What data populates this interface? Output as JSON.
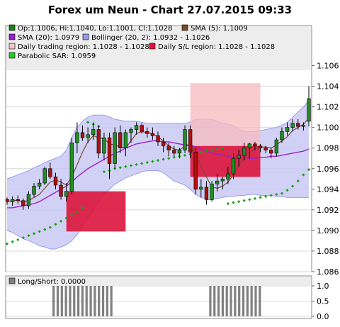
{
  "chart_data": [
    {
      "type": "candlestick",
      "title": "Forex um Neun - Chart 27.07.2015 09:33",
      "ylim": [
        1.086,
        1.106
      ],
      "yticks": [
        "1.086",
        "1.088",
        "1.090",
        "1.092",
        "1.094",
        "1.096",
        "1.098",
        "1.100",
        "1.102",
        "1.104",
        "1.106"
      ],
      "grid": true,
      "legend": [
        {
          "label": "Op:1.1006, Hi:1.1040, Lo:1.1001, Cl:1.1028",
          "color": "#1a7f1a"
        },
        {
          "label": "SMA (5): 1.1009",
          "color": "#7a4a2a"
        },
        {
          "label": "SMA (20): 1.0979",
          "color": "#9a20c8"
        },
        {
          "label": "Bollinger (20, 2): 1.0932 - 1.1026",
          "color": "#9a9af0"
        },
        {
          "label": "Daily trading region: 1.1028 - 1.1028",
          "color": "#f4c4c8"
        },
        {
          "label": "Daily S/L region: 1.1028 - 1.1028",
          "color": "#dc143c"
        },
        {
          "label": "Parabolic SAR: 1.0959",
          "color": "#22cc22"
        }
      ],
      "candles": [
        [
          1.093,
          1.0932,
          1.0925,
          1.0928
        ],
        [
          1.0928,
          1.0933,
          1.0924,
          1.093
        ],
        [
          1.093,
          1.0934,
          1.0926,
          1.0929
        ],
        [
          1.0929,
          1.0931,
          1.092,
          1.0924
        ],
        [
          1.0924,
          1.0938,
          1.0921,
          1.0935
        ],
        [
          1.0935,
          1.0946,
          1.0932,
          1.0943
        ],
        [
          1.0943,
          1.095,
          1.094,
          1.0946
        ],
        [
          1.0946,
          1.0962,
          1.0944,
          1.096
        ],
        [
          1.096,
          1.0966,
          1.095,
          1.0952
        ],
        [
          1.0952,
          1.0956,
          1.094,
          1.0944
        ],
        [
          1.0944,
          1.095,
          1.093,
          1.0933
        ],
        [
          1.0933,
          1.0946,
          1.0928,
          1.0938
        ],
        [
          1.0938,
          1.099,
          1.0935,
          1.0985
        ],
        [
          1.0985,
          1.1005,
          1.0975,
          1.0995
        ],
        [
          1.0995,
          1.1002,
          1.0987,
          1.099
        ],
        [
          1.099,
          1.1,
          1.0985,
          1.0993
        ],
        [
          1.0993,
          1.1005,
          1.0988,
          1.0998
        ],
        [
          1.0998,
          1.1002,
          1.097,
          1.0975
        ],
        [
          1.0975,
          1.0995,
          1.0968,
          1.099
        ],
        [
          1.099,
          1.0995,
          1.095,
          1.0965
        ],
        [
          1.0965,
          1.1,
          1.096,
          1.0995
        ],
        [
          1.0995,
          1.1002,
          1.0975,
          1.098
        ],
        [
          1.098,
          1.0998,
          1.0972,
          1.0995
        ],
        [
          1.0995,
          1.1,
          1.0985,
          1.0998
        ],
        [
          1.0998,
          1.1005,
          1.0993,
          1.1002
        ],
        [
          1.1002,
          1.1004,
          1.0994,
          1.0996
        ],
        [
          1.0996,
          1.1,
          1.099,
          1.0994
        ],
        [
          1.0994,
          1.1,
          1.0988,
          1.0992
        ],
        [
          1.0992,
          1.0996,
          1.0982,
          1.0986
        ],
        [
          1.0986,
          1.099,
          1.0976,
          1.0982
        ],
        [
          1.0982,
          1.0985,
          1.0972,
          1.0978
        ],
        [
          1.0978,
          1.0982,
          1.0972,
          1.0975
        ],
        [
          1.0975,
          1.098,
          1.097,
          1.0978
        ],
        [
          1.0978,
          1.1002,
          1.0975,
          1.0998
        ],
        [
          1.0998,
          1.1002,
          1.097,
          1.0976
        ],
        [
          1.0976,
          1.098,
          1.0935,
          1.094
        ],
        [
          1.094,
          1.095,
          1.0932,
          1.0942
        ],
        [
          1.0942,
          1.0948,
          1.0925,
          1.093
        ],
        [
          1.093,
          1.0948,
          1.0928,
          1.0945
        ],
        [
          1.0945,
          1.0955,
          1.0938,
          1.0948
        ],
        [
          1.0948,
          1.0952,
          1.094,
          1.095
        ],
        [
          1.095,
          1.0962,
          1.0945,
          1.0955
        ],
        [
          1.0955,
          1.0975,
          1.095,
          1.097
        ],
        [
          1.097,
          1.0978,
          1.0962,
          1.0973
        ],
        [
          1.0973,
          1.0985,
          1.0968,
          1.098
        ],
        [
          1.098,
          1.0985,
          1.097,
          1.0984
        ],
        [
          1.0984,
          1.0986,
          1.0978,
          1.0982
        ],
        [
          1.0982,
          1.0984,
          1.0976,
          1.098
        ],
        [
          1.098,
          1.0982,
          1.0975,
          1.0978
        ],
        [
          1.0978,
          1.098,
          1.097,
          1.0975
        ],
        [
          1.0975,
          1.099,
          1.0972,
          1.0988
        ],
        [
          1.0988,
          1.1,
          1.0985,
          1.0996
        ],
        [
          1.0996,
          1.1005,
          1.0992,
          1.1
        ],
        [
          1.1,
          1.1008,
          1.0996,
          1.1004
        ],
        [
          1.1004,
          1.1008,
          1.0998,
          1.1001
        ],
        [
          1.1001,
          1.1005,
          1.0997,
          1.1002
        ],
        [
          1.1006,
          1.104,
          1.1001,
          1.1028
        ]
      ],
      "sma5": [
        1.0928,
        1.0929,
        1.0929,
        1.0928,
        1.0929,
        1.0932,
        1.0935,
        1.0941,
        1.0947,
        1.0949,
        1.0947,
        1.0944,
        1.0952,
        1.0964,
        1.0976,
        1.0986,
        1.0992,
        1.099,
        1.0989,
        1.0984,
        1.0983,
        1.0981,
        1.098,
        1.0987,
        1.0994,
        1.0996,
        1.0995,
        1.0994,
        1.0991,
        1.0987,
        1.0982,
        1.0979,
        1.0978,
        1.0982,
        1.0983,
        1.0973,
        1.0962,
        1.0952,
        1.0942,
        1.0941,
        1.0943,
        1.0947,
        1.0954,
        1.0963,
        1.097,
        1.0976,
        1.0979,
        1.0981,
        1.0981,
        1.098,
        1.0983,
        1.0987,
        1.0991,
        1.0997,
        1.1,
        1.1003,
        1.1009
      ],
      "sma20": [
        1.0922,
        1.0922,
        1.0923,
        1.0924,
        1.0925,
        1.0926,
        1.0928,
        1.0931,
        1.0934,
        1.0937,
        1.094,
        1.0943,
        1.0947,
        1.0952,
        1.0956,
        1.096,
        1.0963,
        1.0966,
        1.0969,
        1.0972,
        1.0975,
        1.0977,
        1.098,
        1.0982,
        1.0984,
        1.0985,
        1.0986,
        1.0987,
        1.0987,
        1.0986,
        1.0986,
        1.0985,
        1.0984,
        1.0983,
        1.0983,
        1.0981,
        1.0979,
        1.0977,
        1.0975,
        1.0974,
        1.0973,
        1.0972,
        1.0971,
        1.0971,
        1.0971,
        1.097,
        1.097,
        1.0971,
        1.0971,
        1.0972,
        1.0972,
        1.0973,
        1.0974,
        1.0975,
        1.0976,
        1.0977,
        1.0979
      ],
      "bb_upper": [
        1.095,
        1.0952,
        1.0954,
        1.0956,
        1.0958,
        1.0961,
        1.0963,
        1.0966,
        1.0968,
        1.097,
        1.0972,
        1.0978,
        1.099,
        1.1,
        1.1006,
        1.101,
        1.1012,
        1.1012,
        1.1012,
        1.101,
        1.1008,
        1.1007,
        1.1006,
        1.1006,
        1.1006,
        1.1005,
        1.1004,
        1.1004,
        1.1004,
        1.1004,
        1.1004,
        1.1004,
        1.1004,
        1.1004,
        1.1005,
        1.1008,
        1.1008,
        1.1008,
        1.1008,
        1.1006,
        1.1004,
        1.1003,
        1.1002,
        1.0998,
        1.0996,
        1.0996,
        1.0996,
        1.0997,
        1.0998,
        1.0999,
        1.1,
        1.1002,
        1.1005,
        1.101,
        1.1015,
        1.102,
        1.1026
      ],
      "bb_lower": [
        1.09,
        1.0898,
        1.0895,
        1.0892,
        1.089,
        1.0888,
        1.0885,
        1.0884,
        1.0882,
        1.0882,
        1.0884,
        1.0886,
        1.089,
        1.0896,
        1.0904,
        1.0912,
        1.092,
        1.0928,
        1.0935,
        1.094,
        1.0945,
        1.0948,
        1.0951,
        1.0953,
        1.0955,
        1.0957,
        1.0958,
        1.0958,
        1.0958,
        1.0956,
        1.0952,
        1.0948,
        1.0946,
        1.0944,
        1.094,
        1.0935,
        1.0932,
        1.093,
        1.093,
        1.0931,
        1.0932,
        1.0933,
        1.0933,
        1.0934,
        1.0934,
        1.0935,
        1.0935,
        1.0934,
        1.0934,
        1.0934,
        1.0933,
        1.0933,
        1.0932,
        1.0932,
        1.0932,
        1.0932,
        1.0932
      ],
      "sar": [
        1.0887,
        1.0889,
        1.0891,
        1.0893,
        1.0895,
        1.0897,
        1.0899,
        1.0901,
        1.0903,
        1.0906,
        1.0909,
        1.0912,
        1.0915,
        1.0918,
        1.0922,
        1.1005,
        1.1003,
        1.1001,
        1.0957,
        1.0958,
        1.096,
        1.0961,
        1.0962,
        1.0963,
        1.0964,
        1.0965,
        1.0966,
        1.0967,
        1.0968,
        1.0969,
        1.097,
        1.0971,
        1.0972,
        1.0973,
        1.0974,
        1.0975,
        1.0976,
        1.0977,
        1.0978,
        1.0979,
        1.098,
        1.0926,
        1.0927,
        1.0928,
        1.0929,
        1.093,
        1.0931,
        1.0932,
        1.0933,
        1.0934,
        1.0935,
        1.0936,
        1.0939,
        1.0943,
        1.0948,
        1.0954,
        1.0959
      ],
      "sl_regions": [
        {
          "start_bar": 11,
          "end_bar": 22,
          "upper": 1.0938,
          "lower": 1.0899
        },
        {
          "start_bar": 34,
          "end_bar": 47,
          "upper": 1.0982,
          "lower": 1.0952
        }
      ],
      "trading_regions": [
        {
          "start_bar": 34,
          "end_bar": 47,
          "upper": 1.1043,
          "lower": 1.0982
        }
      ]
    },
    {
      "type": "bar",
      "title": "Long/Short: 0.0000",
      "ylim": [
        0.0,
        1.0
      ],
      "yticks": [
        "0.0",
        "0.5",
        "1.0"
      ],
      "grid": true,
      "values": [
        0,
        0,
        0,
        0,
        0,
        0,
        0,
        0,
        0,
        0,
        0,
        0,
        0,
        0,
        0,
        0,
        0,
        0,
        0,
        0,
        0,
        0,
        1,
        1,
        1,
        1,
        1,
        1,
        1,
        1,
        1,
        1,
        1,
        1,
        1,
        1,
        1,
        1,
        1,
        1,
        1,
        1,
        1,
        1,
        1,
        1,
        1,
        1,
        1,
        1,
        1,
        0,
        0,
        0,
        0,
        0,
        0,
        0,
        0,
        0,
        0,
        0,
        0,
        0,
        0,
        0,
        0,
        0,
        0,
        0,
        0,
        0,
        0,
        0,
        0,
        0,
        0,
        0,
        0,
        0,
        0,
        0,
        0,
        0,
        0,
        0,
        0,
        0,
        0,
        0,
        0,
        0,
        0,
        0,
        0,
        0,
        0,
        1,
        1,
        1,
        1,
        1,
        1,
        1,
        1,
        1,
        1,
        1,
        1,
        1,
        1,
        1,
        1,
        1,
        1,
        1,
        1,
        1,
        1,
        1,
        1,
        1,
        1,
        0,
        0,
        0,
        0,
        0,
        0,
        0,
        0,
        0,
        0,
        0,
        0,
        0,
        0,
        0,
        0,
        0,
        0,
        0,
        0,
        0,
        0,
        0,
        0
      ]
    }
  ]
}
